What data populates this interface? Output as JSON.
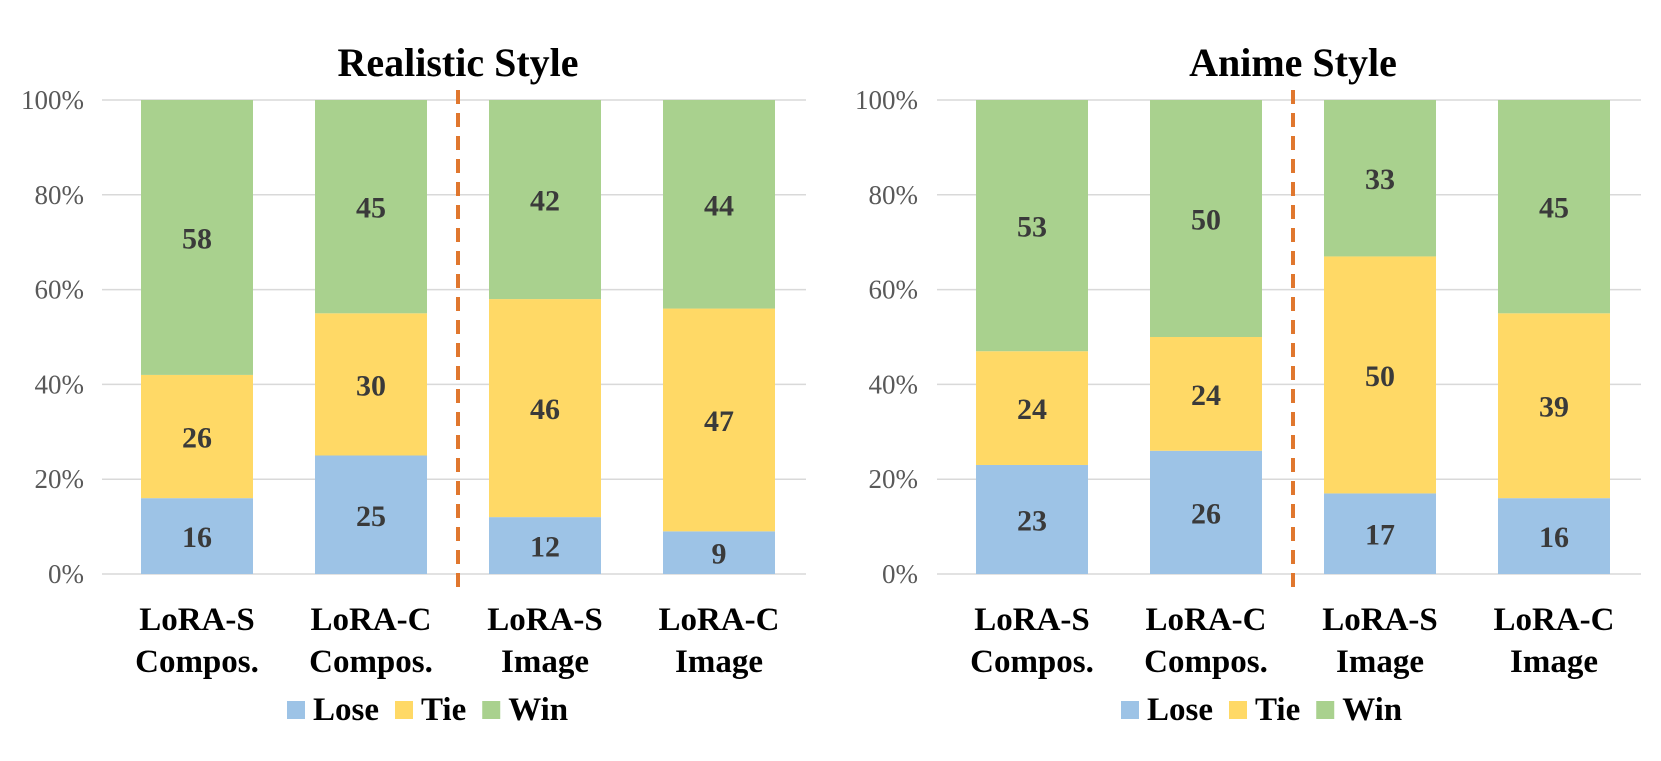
{
  "chart_data": [
    {
      "type": "bar",
      "stacked": true,
      "title": "Realistic Style",
      "categories": [
        [
          "LoRA-S",
          "Compos."
        ],
        [
          "LoRA-C",
          "Compos."
        ],
        [
          "LoRA-S",
          "Image"
        ],
        [
          "LoRA-C",
          "Image"
        ]
      ],
      "series": [
        {
          "name": "Lose",
          "values": [
            16,
            25,
            12,
            9
          ]
        },
        {
          "name": "Tie",
          "values": [
            26,
            30,
            46,
            47
          ]
        },
        {
          "name": "Win",
          "values": [
            58,
            45,
            42,
            44
          ]
        }
      ],
      "yticks": [
        "0%",
        "20%",
        "40%",
        "60%",
        "80%",
        "100%"
      ],
      "ylim": [
        0,
        100
      ],
      "divider_after_category": 2,
      "grid": true,
      "legend": "bottom"
    },
    {
      "type": "bar",
      "stacked": true,
      "title": "Anime Style",
      "categories": [
        [
          "LoRA-S",
          "Compos."
        ],
        [
          "LoRA-C",
          "Compos."
        ],
        [
          "LoRA-S",
          "Image"
        ],
        [
          "LoRA-C",
          "Image"
        ]
      ],
      "series": [
        {
          "name": "Lose",
          "values": [
            23,
            26,
            17,
            16
          ]
        },
        {
          "name": "Tie",
          "values": [
            24,
            24,
            50,
            39
          ]
        },
        {
          "name": "Win",
          "values": [
            53,
            50,
            33,
            45
          ]
        }
      ],
      "yticks": [
        "0%",
        "20%",
        "40%",
        "60%",
        "80%",
        "100%"
      ],
      "ylim": [
        0,
        100
      ],
      "divider_after_category": 2,
      "grid": true,
      "legend": "bottom"
    }
  ],
  "colors": {
    "Lose": "#9dc3e6",
    "Tie": "#ffd966",
    "Win": "#a9d18e"
  }
}
